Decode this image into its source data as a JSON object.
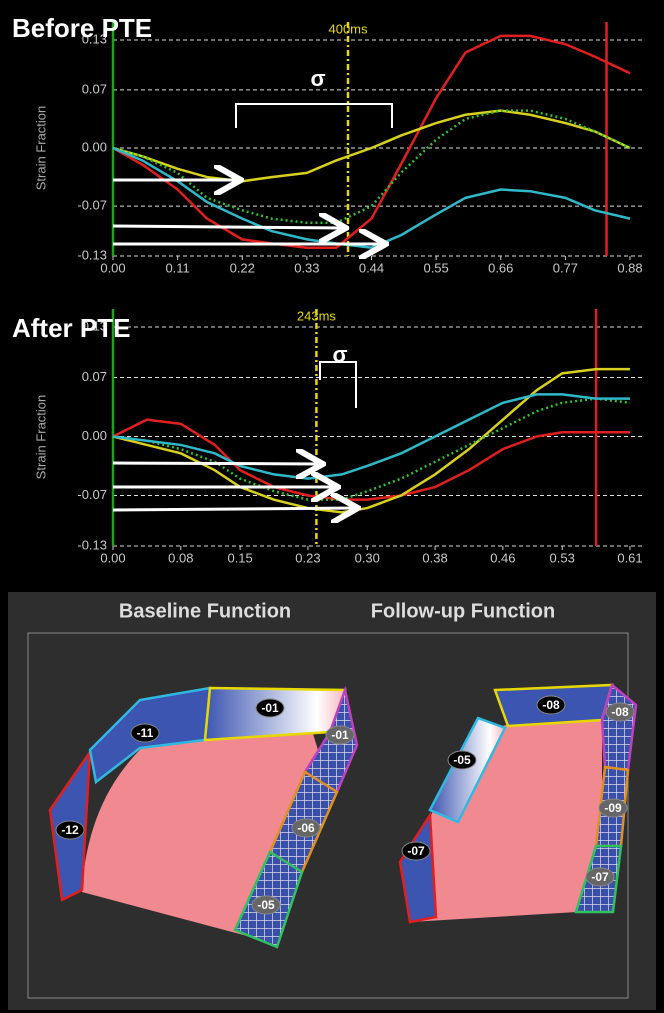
{
  "chart_data": [
    {
      "type": "line",
      "title": "Before PTE",
      "y_label": "Strain Fraction",
      "x": [
        0,
        0.05,
        0.11,
        0.16,
        0.22,
        0.27,
        0.33,
        0.38,
        0.44,
        0.49,
        0.55,
        0.6,
        0.66,
        0.71,
        0.77,
        0.82,
        0.88
      ],
      "series": [
        {
          "color": "#e02020",
          "values": [
            0,
            -0.02,
            -0.05,
            -0.085,
            -0.11,
            -0.115,
            -0.12,
            -0.12,
            -0.085,
            -0.02,
            0.06,
            0.115,
            0.135,
            0.135,
            0.125,
            0.11,
            0.09
          ]
        },
        {
          "color": "#d8d020",
          "values": [
            0,
            -0.01,
            -0.025,
            -0.035,
            -0.04,
            -0.035,
            -0.03,
            -0.015,
            0,
            0.015,
            0.03,
            0.04,
            0.045,
            0.04,
            0.03,
            0.02,
            0
          ]
        },
        {
          "color": "#30c030",
          "dashed": true,
          "values": [
            0,
            -0.01,
            -0.03,
            -0.06,
            -0.075,
            -0.085,
            -0.09,
            -0.09,
            -0.07,
            -0.03,
            0.01,
            0.035,
            0.045,
            0.045,
            0.035,
            0.02,
            0
          ]
        },
        {
          "color": "#30b8c8",
          "values": [
            0,
            -0.015,
            -0.04,
            -0.065,
            -0.085,
            -0.1,
            -0.11,
            -0.115,
            -0.12,
            -0.105,
            -0.08,
            -0.06,
            -0.05,
            -0.052,
            -0.06,
            -0.075,
            -0.085
          ]
        }
      ],
      "vlines": [
        {
          "x": 0,
          "color": "#20a020"
        },
        {
          "x": 0.4,
          "color": "#e6d800",
          "dashed": true,
          "label": "400ms"
        },
        {
          "x": 0.84,
          "color": "#e02020"
        }
      ],
      "sigma": "σ",
      "xlim": [
        0,
        0.88
      ],
      "xticks": [
        {
          "value": 0,
          "label": "0.00"
        },
        0.11,
        0.22,
        0.33,
        0.44,
        0.55,
        0.66,
        0.77,
        0.88
      ],
      "ylim": [
        -0.13,
        0.13
      ],
      "yticks": [
        -0.13,
        -0.07,
        {
          "value": 0,
          "label": "0.00"
        },
        0.07,
        0.13
      ],
      "grid": true
    },
    {
      "type": "line",
      "title": "After PTE",
      "y_label": "Strain Fraction",
      "x": [
        0,
        0.04,
        0.08,
        0.12,
        0.15,
        0.19,
        0.23,
        0.27,
        0.3,
        0.34,
        0.38,
        0.42,
        0.46,
        0.5,
        0.53,
        0.57,
        0.61
      ],
      "series": [
        {
          "color": "#e02020",
          "values": [
            0,
            0.02,
            0.015,
            -0.01,
            -0.04,
            -0.06,
            -0.07,
            -0.075,
            -0.075,
            -0.07,
            -0.06,
            -0.04,
            -0.015,
            0,
            0.005,
            0.005,
            0.005
          ]
        },
        {
          "color": "#d8d020",
          "values": [
            0,
            -0.01,
            -0.02,
            -0.04,
            -0.06,
            -0.075,
            -0.085,
            -0.09,
            -0.085,
            -0.07,
            -0.045,
            -0.015,
            0.02,
            0.055,
            0.075,
            0.08,
            0.08
          ]
        },
        {
          "color": "#30c030",
          "dashed": true,
          "values": [
            0,
            -0.005,
            -0.015,
            -0.03,
            -0.05,
            -0.065,
            -0.075,
            -0.075,
            -0.065,
            -0.05,
            -0.03,
            -0.01,
            0.01,
            0.03,
            0.04,
            0.045,
            0.04
          ]
        },
        {
          "color": "#30b8c8",
          "values": [
            0,
            -0.005,
            -0.01,
            -0.02,
            -0.035,
            -0.045,
            -0.05,
            -0.045,
            -0.035,
            -0.02,
            0,
            0.02,
            0.04,
            0.05,
            0.05,
            0.045,
            0.045
          ]
        }
      ],
      "vlines": [
        {
          "x": 0,
          "color": "#20a020"
        },
        {
          "x": 0.24,
          "color": "#e6d800",
          "dashed": true,
          "label": "243ms"
        },
        {
          "x": 0.57,
          "color": "#e02020"
        }
      ],
      "sigma": "σ",
      "xlim": [
        0,
        0.61
      ],
      "xticks": [
        {
          "value": 0,
          "label": "0.00"
        },
        0.08,
        0.15,
        0.23,
        {
          "value": 0.3,
          "label": "0.30"
        },
        0.38,
        0.46,
        0.53,
        0.61
      ],
      "ylim": [
        -0.13,
        0.13
      ],
      "yticks": [
        -0.13,
        -0.07,
        {
          "value": 0,
          "label": "0.00"
        },
        0.07,
        0.13
      ],
      "grid": true
    }
  ],
  "diagram": {
    "baseline": {
      "title": "Baseline Function",
      "segments": [
        "-12",
        "-11",
        "-01",
        "-01",
        "-06",
        "-05"
      ]
    },
    "followup": {
      "title": "Follow-up Function",
      "segments": [
        "-07",
        "-05",
        "-08",
        "-08",
        "-09",
        "-07"
      ]
    }
  }
}
